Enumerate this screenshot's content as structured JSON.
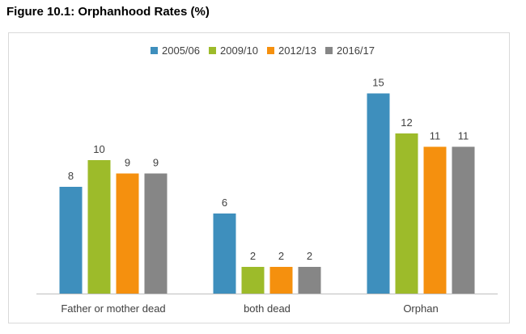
{
  "figure_title": "Figure 10.1: Orphanhood Rates (%)",
  "colors": [
    "#3e8fbd",
    "#9dbb2a",
    "#f5900e",
    "#868686"
  ],
  "chart_data": {
    "type": "bar",
    "title": "Figure 10.1: Orphanhood Rates (%)",
    "xlabel": "",
    "ylabel": "",
    "categories": [
      "Father or mother dead",
      "both dead",
      "Orphan"
    ],
    "series": [
      {
        "name": "2005/06",
        "values": [
          8,
          6,
          15
        ]
      },
      {
        "name": "2009/10",
        "values": [
          10,
          2,
          12
        ]
      },
      {
        "name": "2012/13",
        "values": [
          9,
          2,
          11
        ]
      },
      {
        "name": "2016/17",
        "values": [
          9,
          2,
          11
        ]
      }
    ],
    "ylim": [
      0,
      16
    ],
    "grid": false,
    "legend": "top-center",
    "data_labels": true
  }
}
